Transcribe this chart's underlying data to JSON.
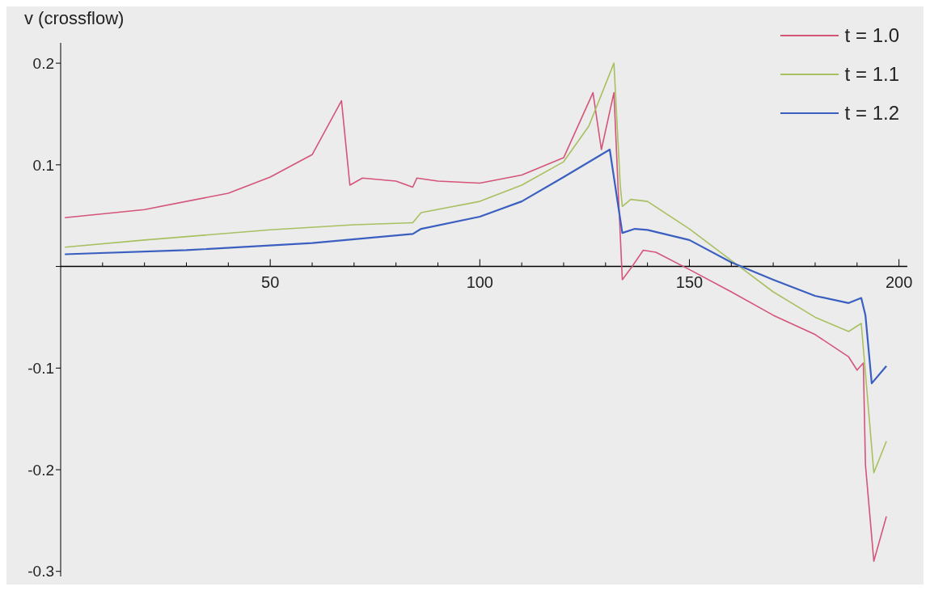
{
  "chart_data": {
    "type": "line",
    "ylabel": "v (crossflow)",
    "legend": "top right",
    "line_style": "solid",
    "xlim": [
      0,
      202
    ],
    "ylim": [
      -0.305,
      0.22
    ],
    "xticks": [
      {
        "value": 10,
        "label": null
      },
      {
        "value": 20,
        "label": null
      },
      {
        "value": 30,
        "label": null
      },
      {
        "value": 40,
        "label": null
      },
      50,
      {
        "value": 60,
        "label": null
      },
      {
        "value": 70,
        "label": null
      },
      {
        "value": 80,
        "label": null
      },
      {
        "value": 90,
        "label": null
      },
      100,
      {
        "value": 110,
        "label": null
      },
      {
        "value": 120,
        "label": null
      },
      {
        "value": 130,
        "label": null
      },
      {
        "value": 140,
        "label": null
      },
      150,
      {
        "value": 160,
        "label": null
      },
      {
        "value": 170,
        "label": null
      },
      {
        "value": 180,
        "label": null
      },
      {
        "value": 190,
        "label": null
      },
      200
    ],
    "yticks": [
      -0.3,
      -0.2,
      -0.1,
      {
        "value": 0,
        "label": null
      },
      0.1,
      0.2
    ],
    "series": [
      {
        "name": "t = 1.0",
        "color": "#d4547a",
        "x": [
          1,
          20,
          40,
          50,
          60,
          67,
          69,
          72,
          80,
          84,
          85,
          90,
          100,
          110,
          120,
          127,
          129,
          132,
          133,
          134,
          136,
          139,
          142,
          150,
          160,
          170,
          180,
          188,
          190,
          191.5,
          192,
          194,
          197
        ],
        "values": [
          0.048,
          0.056,
          0.072,
          0.088,
          0.11,
          0.163,
          0.08,
          0.087,
          0.084,
          0.078,
          0.087,
          0.084,
          0.082,
          0.09,
          0.107,
          0.171,
          0.115,
          0.171,
          0.076,
          -0.013,
          -0.002,
          0.016,
          0.014,
          -0.003,
          -0.025,
          -0.048,
          -0.067,
          -0.089,
          -0.102,
          -0.095,
          -0.195,
          -0.29,
          -0.246
        ]
      },
      {
        "name": "t = 1.1",
        "color": "#a8c060",
        "x": [
          1,
          20,
          50,
          70,
          84,
          86,
          100,
          110,
          120,
          126,
          132,
          133.5,
          134,
          136,
          140,
          150,
          160,
          170,
          180,
          188,
          191,
          194,
          197
        ],
        "values": [
          0.019,
          0.026,
          0.036,
          0.041,
          0.043,
          0.053,
          0.064,
          0.08,
          0.103,
          0.138,
          0.2,
          0.08,
          0.059,
          0.066,
          0.064,
          0.037,
          0.006,
          -0.025,
          -0.05,
          -0.064,
          -0.056,
          -0.203,
          -0.172
        ]
      },
      {
        "name": "t = 1.2",
        "color": "#3a5fc0",
        "x": [
          1,
          30,
          60,
          84,
          86,
          100,
          110,
          120,
          131,
          133,
          134,
          137,
          140,
          150,
          160,
          170,
          180,
          188,
          191,
          192,
          193.5,
          197
        ],
        "values": [
          0.012,
          0.016,
          0.023,
          0.032,
          0.037,
          0.049,
          0.064,
          0.088,
          0.115,
          0.06,
          0.033,
          0.037,
          0.036,
          0.026,
          0.004,
          -0.013,
          -0.029,
          -0.036,
          -0.031,
          -0.048,
          -0.115,
          -0.098
        ]
      }
    ]
  }
}
